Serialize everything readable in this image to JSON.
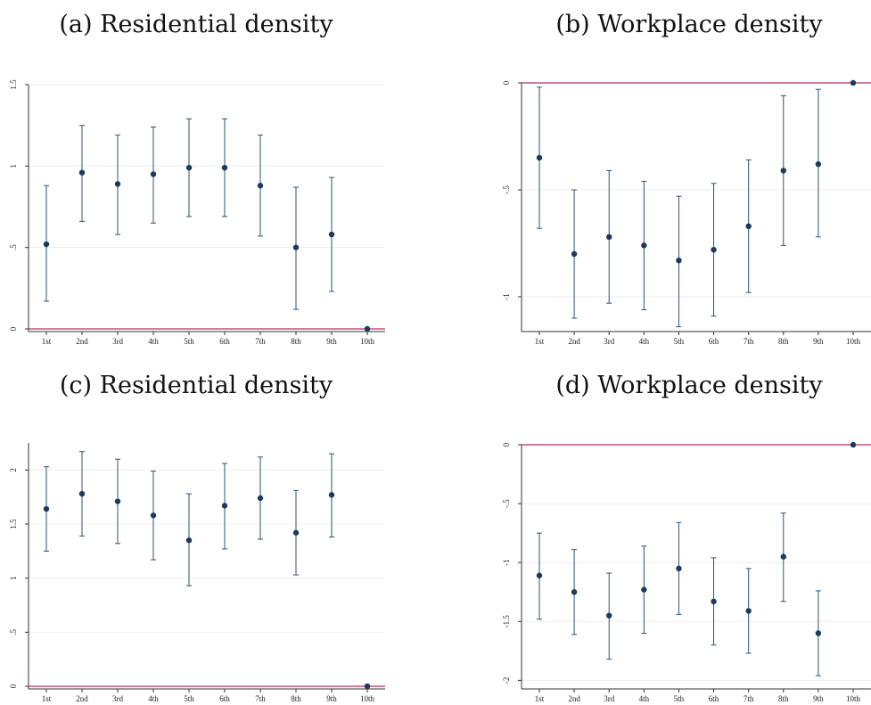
{
  "colors": {
    "marker": "#1b3a5c",
    "errorbar": "#2a5478",
    "reference_line": "#b0305a",
    "grid": "#eceff3",
    "axis": "#333333"
  },
  "chart_data": [
    {
      "type": "scatter",
      "title": "(a) Residential density",
      "categories": [
        "1st",
        "2nd",
        "3rd",
        "4th",
        "5th",
        "6th",
        "7th",
        "8th",
        "9th",
        "10th"
      ],
      "values": [
        0.52,
        0.96,
        0.89,
        0.95,
        0.99,
        0.99,
        0.88,
        0.5,
        0.58,
        0.0
      ],
      "ci_lower": [
        0.17,
        0.66,
        0.58,
        0.65,
        0.69,
        0.69,
        0.57,
        0.12,
        0.23,
        null
      ],
      "ci_upper": [
        0.88,
        1.25,
        1.19,
        1.24,
        1.29,
        1.29,
        1.19,
        0.87,
        0.93,
        null
      ],
      "ylim": [
        0,
        1.5
      ],
      "yticks": [
        0,
        0.5,
        1,
        1.5
      ],
      "ytick_labels": [
        "0",
        ".5",
        "1",
        "1.5"
      ],
      "reference_line": 0,
      "grid": true
    },
    {
      "type": "scatter",
      "title": "(b) Workplace density",
      "categories": [
        "1st",
        "2nd",
        "3rd",
        "4th",
        "5th",
        "6th",
        "7th",
        "8th",
        "9th",
        "10th"
      ],
      "values": [
        -0.35,
        -0.8,
        -0.72,
        -0.76,
        -0.83,
        -0.78,
        -0.67,
        -0.41,
        -0.38,
        0.0
      ],
      "ci_lower": [
        -0.68,
        -1.1,
        -1.03,
        -1.06,
        -1.14,
        -1.09,
        -0.98,
        -0.76,
        -0.72,
        null
      ],
      "ci_upper": [
        -0.02,
        -0.5,
        -0.41,
        -0.46,
        -0.53,
        -0.47,
        -0.36,
        -0.06,
        -0.03,
        null
      ],
      "ylim": [
        -1.15,
        0
      ],
      "yticks": [
        0,
        -0.5,
        -1
      ],
      "ytick_labels": [
        "0",
        "-.5",
        "-1"
      ],
      "reference_line": 0,
      "grid": true
    },
    {
      "type": "scatter",
      "title": "(c) Residential density",
      "categories": [
        "1st",
        "2nd",
        "3rd",
        "4th",
        "5th",
        "6th",
        "7th",
        "8th",
        "9th",
        "10th"
      ],
      "values": [
        1.64,
        1.78,
        1.71,
        1.58,
        1.35,
        1.67,
        1.74,
        1.42,
        1.77,
        0.0
      ],
      "ci_lower": [
        1.25,
        1.39,
        1.32,
        1.17,
        0.93,
        1.27,
        1.36,
        1.03,
        1.38,
        null
      ],
      "ci_upper": [
        2.03,
        2.17,
        2.1,
        1.99,
        1.78,
        2.06,
        2.12,
        1.81,
        2.15,
        null
      ],
      "ylim": [
        0,
        2.25
      ],
      "yticks": [
        0,
        0.5,
        1,
        1.5,
        2
      ],
      "ytick_labels": [
        "0",
        ".5",
        "1",
        "1.5",
        "2"
      ],
      "reference_line": 0,
      "grid": true
    },
    {
      "type": "scatter",
      "title": "(d) Workplace density",
      "categories": [
        "1st",
        "2nd",
        "3rd",
        "4th",
        "5th",
        "6th",
        "7th",
        "8th",
        "9th",
        "10th"
      ],
      "values": [
        -1.11,
        -1.25,
        -1.45,
        -1.23,
        -1.05,
        -1.33,
        -1.41,
        -0.95,
        -1.6,
        0.0
      ],
      "ci_lower": [
        -1.48,
        -1.61,
        -1.82,
        -1.6,
        -1.44,
        -1.7,
        -1.77,
        -1.33,
        -1.96,
        null
      ],
      "ci_upper": [
        -0.75,
        -0.89,
        -1.09,
        -0.86,
        -0.66,
        -0.96,
        -1.05,
        -0.58,
        -1.24,
        null
      ],
      "ylim": [
        -2.05,
        0
      ],
      "yticks": [
        0,
        -0.5,
        -1,
        -1.5,
        -2
      ],
      "ytick_labels": [
        "0",
        "-.5",
        "-1",
        "-1.5",
        "-2"
      ],
      "reference_line": 0,
      "grid": true
    }
  ]
}
